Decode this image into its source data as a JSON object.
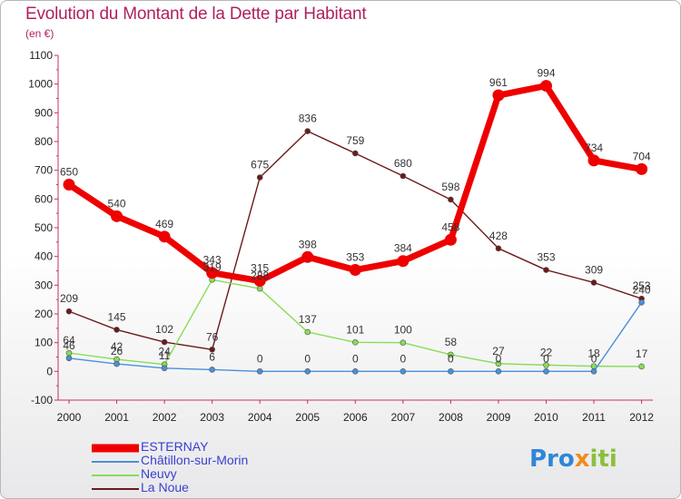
{
  "header": {
    "title": "Evolution du Montant de la Dette par Habitant",
    "subtitle": "(en €)"
  },
  "logo": {
    "text": "Proxiti",
    "parts": [
      "Pro",
      "x",
      "iti"
    ]
  },
  "chart_data": {
    "type": "line",
    "x": [
      "2000",
      "2001",
      "2002",
      "2003",
      "2004",
      "2005",
      "2006",
      "2007",
      "2008",
      "2009",
      "2010",
      "2011",
      "2012"
    ],
    "ylim": [
      -100,
      1100
    ],
    "yticks": [
      "-100",
      "0",
      "100",
      "200",
      "300",
      "400",
      "500",
      "600",
      "700",
      "800",
      "900",
      "1000",
      "1100"
    ],
    "grid": false,
    "legend_position": "bottom-left",
    "series": [
      {
        "name": "ESTERNAY",
        "color": "#ee0000",
        "values": [
          650,
          540,
          469,
          343,
          315,
          398,
          353,
          384,
          458,
          961,
          994,
          734,
          704
        ],
        "labels": [
          "650",
          "540",
          "469",
          "343",
          "315",
          "398",
          "353",
          "384",
          "458",
          "961",
          "994",
          "734",
          "704"
        ]
      },
      {
        "name": "Châtillon-sur-Morin",
        "color": "#4a90d9",
        "values": [
          46,
          26,
          11,
          6,
          0,
          0,
          0,
          0,
          0,
          0,
          0,
          0,
          240
        ],
        "labels": [
          "46",
          "26",
          "11",
          "6",
          "0",
          "0",
          "0",
          "0",
          "0",
          "0",
          "0",
          "0",
          "240"
        ]
      },
      {
        "name": "Neuvy",
        "color": "#88dd55",
        "values": [
          64,
          42,
          24,
          319,
          288,
          137,
          101,
          100,
          58,
          27,
          22,
          18,
          17
        ],
        "labels": [
          "64",
          "42",
          "24",
          "319",
          "288",
          "137",
          "101",
          "100",
          "58",
          "27",
          "22",
          "18",
          "17"
        ]
      },
      {
        "name": "La Noue",
        "color": "#6b1a1a",
        "values": [
          209,
          145,
          102,
          76,
          675,
          836,
          759,
          680,
          598,
          428,
          353,
          309,
          253
        ],
        "labels": [
          "209",
          "145",
          "102",
          "76",
          "675",
          "836",
          "759",
          "680",
          "598",
          "428",
          "353",
          "309",
          "253"
        ]
      }
    ]
  }
}
